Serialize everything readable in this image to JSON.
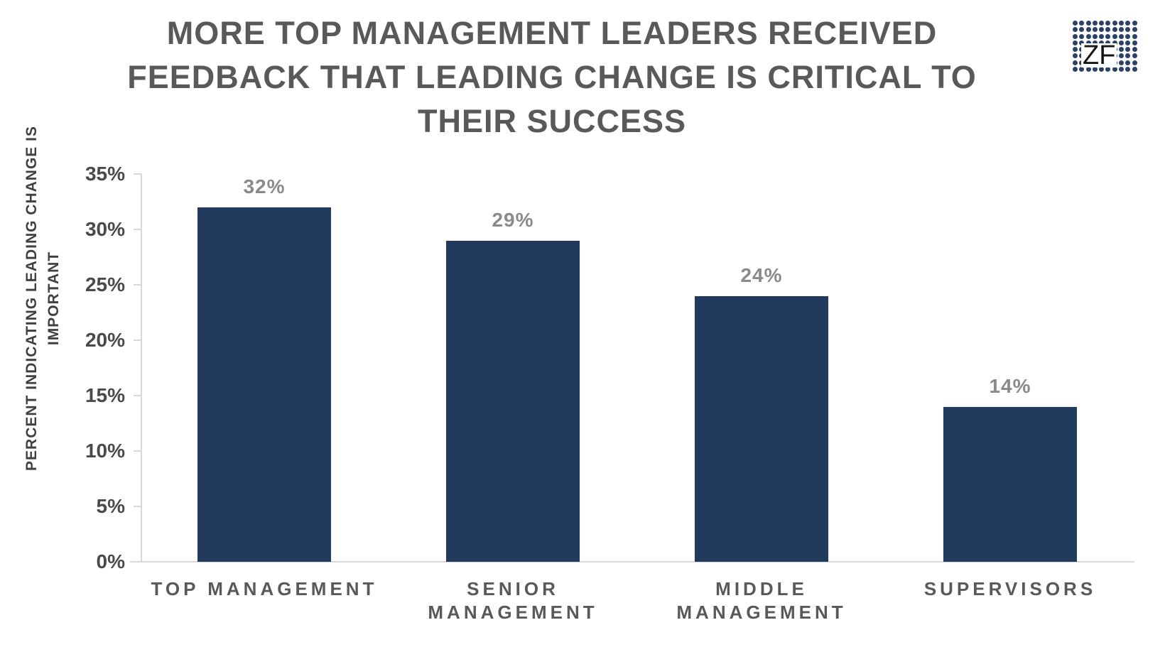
{
  "header": {
    "title_lines": [
      "MORE TOP MANAGEMENT LEADERS RECEIVED",
      "FEEDBACK THAT LEADING CHANGE IS CRITICAL TO",
      "THEIR SUCCESS"
    ]
  },
  "logo": {
    "text": "ZF",
    "rows": 8,
    "cols": 10,
    "dot_color": "#2B4168"
  },
  "chart_data": {
    "type": "bar",
    "title": "MORE TOP MANAGEMENT LEADERS RECEIVED FEEDBACK THAT LEADING CHANGE IS CRITICAL TO THEIR SUCCESS",
    "categories": [
      "TOP MANAGEMENT",
      "SENIOR MANAGEMENT",
      "MIDDLE MANAGEMENT",
      "SUPERVISORS"
    ],
    "category_label_lines": [
      [
        "TOP MANAGEMENT"
      ],
      [
        "SENIOR",
        "MANAGEMENT"
      ],
      [
        "MIDDLE",
        "MANAGEMENT"
      ],
      [
        "SUPERVISORS"
      ]
    ],
    "values": [
      32,
      29,
      24,
      14
    ],
    "data_labels": [
      "32%",
      "29%",
      "24%",
      "14%"
    ],
    "xlabel": "",
    "ylabel": "PERCENT INDICATING LEADING CHANGE IS IMPORTANT",
    "ylabel_lines": [
      "PERCENT INDICATING LEADING CHANGE IS",
      "IMPORTANT"
    ],
    "ylim": [
      0,
      35
    ],
    "ytick_step": 5,
    "ytick_labels": [
      "0%",
      "5%",
      "10%",
      "15%",
      "20%",
      "25%",
      "30%",
      "35%"
    ],
    "grid": false,
    "legend": false,
    "colors": {
      "bar": "#223A5E",
      "axis": "#D9D9D9",
      "title": "#595959",
      "tick_label": "#4A4A4A",
      "data_label": "#8A8A8A",
      "category_label": "#595959",
      "yaxis_title": "#404040"
    }
  }
}
